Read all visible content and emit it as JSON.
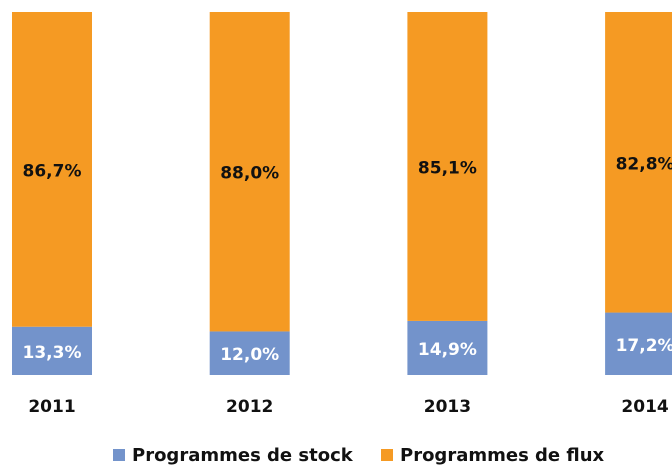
{
  "chart_data": {
    "type": "stacked_bar",
    "categories": [
      "2011",
      "2012",
      "2013",
      "2014"
    ],
    "series": [
      {
        "name": "Programmes de stock",
        "color": "#7393cb",
        "values": [
          13.3,
          12.0,
          14.9,
          17.2
        ],
        "value_labels": [
          "13,3%",
          "12,0%",
          "14,9%",
          "17,2%"
        ]
      },
      {
        "name": "Programmes de flux",
        "color": "#f59a23",
        "values": [
          86.7,
          88.0,
          85.1,
          82.8
        ],
        "value_labels": [
          "86,7%",
          "88,0%",
          "85,1%",
          "82,8%"
        ]
      }
    ],
    "ylim": [
      0,
      100
    ]
  }
}
